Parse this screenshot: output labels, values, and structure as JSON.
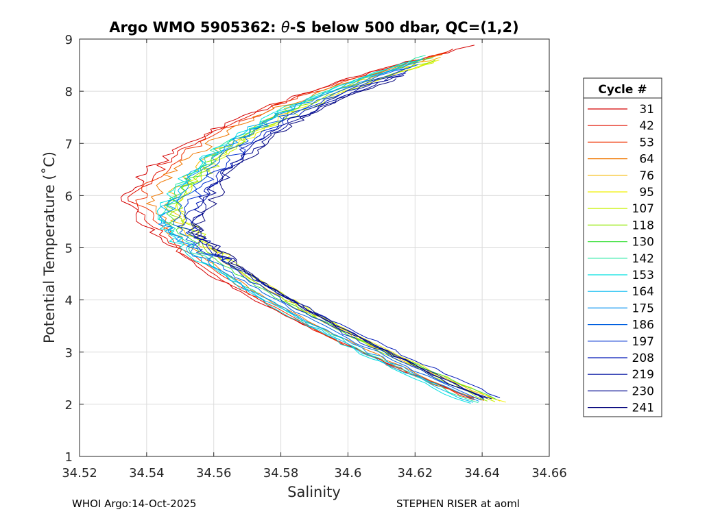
{
  "chart_data": {
    "type": "line",
    "title_prefix": "Argo WMO 5905362: ",
    "title_theta": "θ",
    "title_suffix": "-S below 500 dbar,  QC=(1,2)",
    "xlabel": "Salinity",
    "ylabel": "Potential Temperature (˚C)",
    "xlim": [
      34.52,
      34.66
    ],
    "ylim": [
      1,
      9
    ],
    "xticks": [
      34.52,
      34.54,
      34.56,
      34.58,
      34.6,
      34.62,
      34.64,
      34.66
    ],
    "xtick_labels": [
      "34.52",
      "34.54",
      "34.56",
      "34.58",
      "34.6",
      "34.62",
      "34.64",
      "34.66"
    ],
    "yticks": [
      1,
      2,
      3,
      4,
      5,
      6,
      7,
      8,
      9
    ],
    "ytick_labels": [
      "1",
      "2",
      "3",
      "4",
      "5",
      "6",
      "7",
      "8",
      "9"
    ],
    "grid": true,
    "legend_title": "Cycle #",
    "legend_position": "outside-right",
    "series": [
      {
        "name": "31",
        "color": "#d40000",
        "tip": [
          34.637,
          8.87
        ],
        "nose": [
          34.534,
          5.95
        ],
        "bottom": [
          34.638,
          2.1
        ]
      },
      {
        "name": "42",
        "color": "#e01000",
        "tip": [
          34.632,
          8.8
        ],
        "nose": [
          34.536,
          5.9
        ],
        "bottom": [
          34.638,
          2.08
        ]
      },
      {
        "name": "53",
        "color": "#f03000",
        "tip": [
          34.63,
          8.75
        ],
        "nose": [
          34.538,
          5.9
        ],
        "bottom": [
          34.637,
          2.07
        ]
      },
      {
        "name": "64",
        "color": "#f07800",
        "tip": [
          34.628,
          8.7
        ],
        "nose": [
          34.541,
          5.85
        ],
        "bottom": [
          34.64,
          2.06
        ]
      },
      {
        "name": "76",
        "color": "#f5b800",
        "tip": [
          34.627,
          8.65
        ],
        "nose": [
          34.546,
          5.8
        ],
        "bottom": [
          34.645,
          2.05
        ]
      },
      {
        "name": "95",
        "color": "#f0f000",
        "tip": [
          34.628,
          8.6
        ],
        "nose": [
          34.549,
          5.75
        ],
        "bottom": [
          34.647,
          2.03
        ]
      },
      {
        "name": "107",
        "color": "#c8f000",
        "tip": [
          34.626,
          8.55
        ],
        "nose": [
          34.55,
          5.7
        ],
        "bottom": [
          34.644,
          2.04
        ]
      },
      {
        "name": "118",
        "color": "#90e800",
        "tip": [
          34.626,
          8.6
        ],
        "nose": [
          34.548,
          5.7
        ],
        "bottom": [
          34.642,
          2.05
        ]
      },
      {
        "name": "130",
        "color": "#40e040",
        "tip": [
          34.625,
          8.65
        ],
        "nose": [
          34.546,
          5.65
        ],
        "bottom": [
          34.645,
          2.08
        ]
      },
      {
        "name": "142",
        "color": "#20e8a0",
        "tip": [
          34.624,
          8.7
        ],
        "nose": [
          34.544,
          5.6
        ],
        "bottom": [
          34.638,
          2.02
        ]
      },
      {
        "name": "153",
        "color": "#00e0e0",
        "tip": [
          34.623,
          8.65
        ],
        "nose": [
          34.543,
          5.55
        ],
        "bottom": [
          34.636,
          2.01
        ]
      },
      {
        "name": "164",
        "color": "#00b8f0",
        "tip": [
          34.622,
          8.6
        ],
        "nose": [
          34.544,
          5.55
        ],
        "bottom": [
          34.637,
          2.03
        ]
      },
      {
        "name": "175",
        "color": "#0090f0",
        "tip": [
          34.621,
          8.55
        ],
        "nose": [
          34.545,
          5.5
        ],
        "bottom": [
          34.639,
          2.05
        ]
      },
      {
        "name": "186",
        "color": "#0060e0",
        "tip": [
          34.62,
          8.5
        ],
        "nose": [
          34.547,
          5.5
        ],
        "bottom": [
          34.64,
          2.07
        ]
      },
      {
        "name": "197",
        "color": "#0030d0",
        "tip": [
          34.619,
          8.45
        ],
        "nose": [
          34.55,
          5.45
        ],
        "bottom": [
          34.641,
          2.09
        ]
      },
      {
        "name": "208",
        "color": "#0018b8",
        "tip": [
          34.618,
          8.4
        ],
        "nose": [
          34.552,
          5.45
        ],
        "bottom": [
          34.646,
          2.12
        ]
      },
      {
        "name": "219",
        "color": "#0010a0",
        "tip": [
          34.617,
          8.35
        ],
        "nose": [
          34.553,
          5.4
        ],
        "bottom": [
          34.642,
          2.1
        ]
      },
      {
        "name": "230",
        "color": "#000890",
        "tip": [
          34.616,
          8.3
        ],
        "nose": [
          34.554,
          5.4
        ],
        "bottom": [
          34.641,
          2.11
        ]
      },
      {
        "name": "241",
        "color": "#00007a",
        "tip": [
          34.615,
          8.25
        ],
        "nose": [
          34.555,
          5.35
        ],
        "bottom": [
          34.64,
          2.12
        ]
      }
    ]
  },
  "footer": {
    "left": "WHOI Argo:14-Oct-2025",
    "right": "STEPHEN RISER at aoml"
  }
}
